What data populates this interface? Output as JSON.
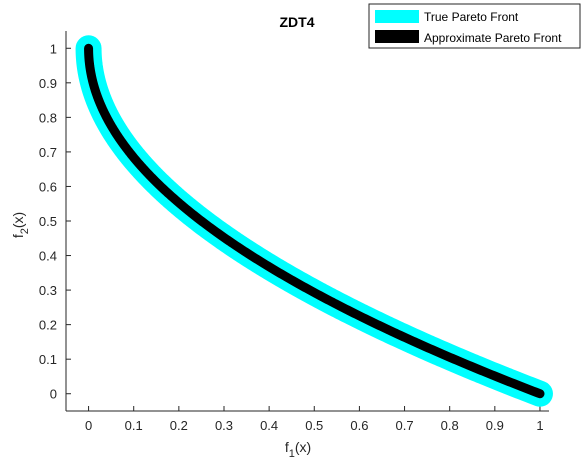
{
  "chart_data": {
    "type": "line",
    "title": "ZDT4",
    "xlabel": {
      "base": "f",
      "sub": "1",
      "suffix": "(x)"
    },
    "ylabel": {
      "base": "f",
      "sub": "2",
      "suffix": "(x)"
    },
    "xlim": [
      -0.05,
      1.02
    ],
    "ylim": [
      -0.05,
      1.05
    ],
    "x_ticks": [
      "0",
      "0.1",
      "0.2",
      "0.3",
      "0.4",
      "0.5",
      "0.6",
      "0.7",
      "0.8",
      "0.9",
      "1"
    ],
    "y_ticks": [
      "0",
      "0.1",
      "0.2",
      "0.3",
      "0.4",
      "0.5",
      "0.6",
      "0.7",
      "0.8",
      "0.9",
      "1"
    ],
    "grid": false,
    "legend_position": "top-right",
    "function": "f2 = 1 - sqrt(f1)",
    "x_range": [
      0,
      1
    ],
    "series": [
      {
        "name": "True Pareto Front",
        "color": "#00ffff",
        "style": "thick-line"
      },
      {
        "name": "Approximate Pareto Front",
        "color": "#000000",
        "style": "marker-line"
      }
    ]
  }
}
